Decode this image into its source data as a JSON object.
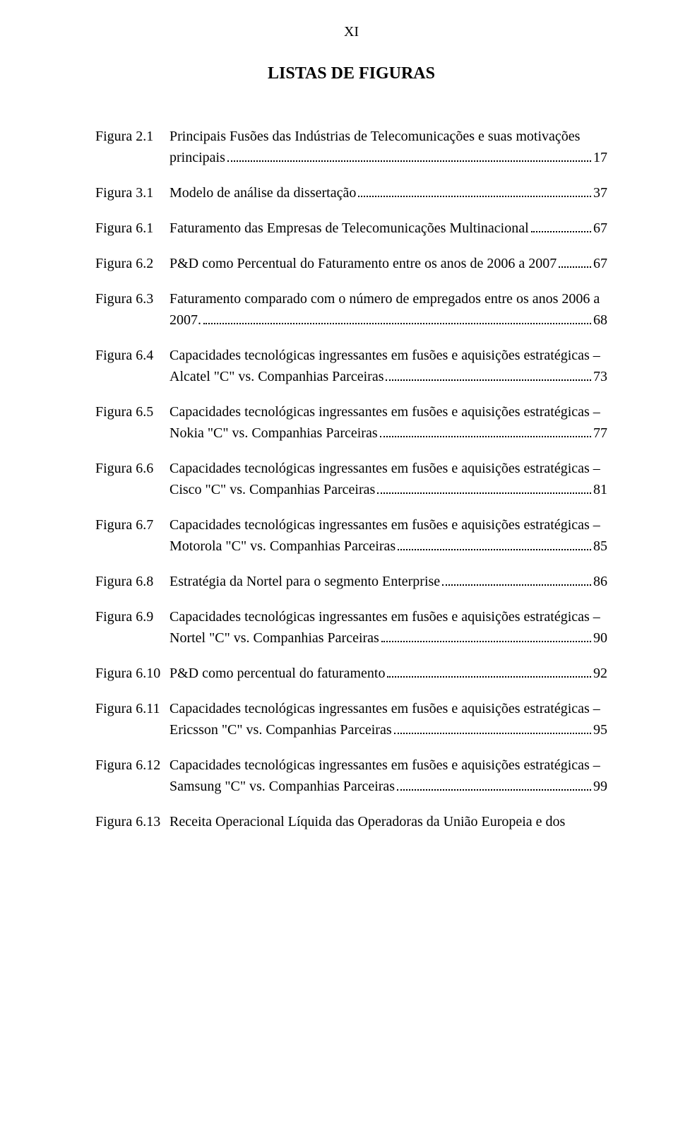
{
  "page_number_roman": "XI",
  "title": "LISTAS DE FIGURAS",
  "entries": [
    {
      "label": "Figura 2.1",
      "line1_pre": "Principais Fusões das Indústrias de Telecomunicações e suas motivações",
      "line2_lead": "principais",
      "page": "17"
    },
    {
      "label": "Figura 3.1",
      "line2_lead": "Modelo de análise da dissertação",
      "page": "37"
    },
    {
      "label": "Figura 6.1",
      "line2_lead": "Faturamento das Empresas de Telecomunicações Multinacional",
      "page": "67"
    },
    {
      "label": "Figura 6.2",
      "line2_lead": "P&D como Percentual do Faturamento entre os anos de 2006 a 2007",
      "page": "67"
    },
    {
      "label": "Figura 6.3",
      "line1_pre": "Faturamento comparado com o número de empregados entre os anos 2006 a",
      "line2_lead": "2007.",
      "page": "68"
    },
    {
      "label": "Figura 6.4",
      "line1_pre": "Capacidades tecnológicas ingressantes em fusões e aquisições estratégicas –",
      "line2_lead": "Alcatel \"C\" vs. Companhias Parceiras",
      "page": "73"
    },
    {
      "label": "Figura 6.5",
      "line1_pre": "Capacidades tecnológicas ingressantes em fusões e aquisições estratégicas –",
      "line2_lead": "Nokia \"C\" vs. Companhias Parceiras",
      "page": "77"
    },
    {
      "label": "Figura 6.6",
      "line1_pre": "Capacidades tecnológicas ingressantes em fusões e aquisições estratégicas –",
      "line2_lead": "Cisco \"C\" vs. Companhias Parceiras",
      "page": "81"
    },
    {
      "label": "Figura 6.7",
      "line1_pre": "Capacidades tecnológicas ingressantes em fusões e aquisições estratégicas –",
      "line2_lead": "Motorola \"C\" vs. Companhias Parceiras",
      "page": "85"
    },
    {
      "label": "Figura 6.8",
      "line2_lead": "Estratégia da Nortel para o segmento Enterprise",
      "page": "86"
    },
    {
      "label": "Figura 6.9",
      "line1_pre": "Capacidades tecnológicas ingressantes em fusões e aquisições estratégicas –",
      "line2_lead": "Nortel \"C\" vs. Companhias Parceiras",
      "page": "90"
    },
    {
      "label": "Figura 6.10",
      "line2_lead": "P&D como percentual do faturamento",
      "page": "92"
    },
    {
      "label": "Figura 6.11",
      "line1_pre": "Capacidades tecnológicas ingressantes em fusões e aquisições estratégicas –",
      "line2_lead": "Ericsson \"C\" vs. Companhias Parceiras",
      "page": "95"
    },
    {
      "label": "Figura 6.12",
      "line1_pre": "Capacidades tecnológicas ingressantes em fusões e aquisições estratégicas –",
      "line2_lead": "Samsung \"C\" vs. Companhias Parceiras",
      "page": "99"
    },
    {
      "label": "Figura 6.13",
      "line1_pre": "Receita Operacional Líquida das Operadoras da União Europeia e dos"
    }
  ]
}
